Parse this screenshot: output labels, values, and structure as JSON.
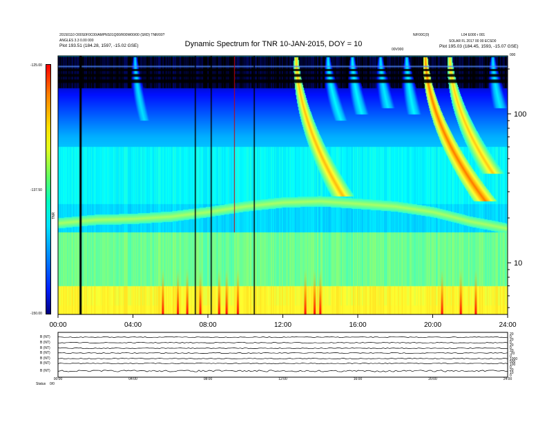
{
  "header": {
    "title": "Dynamic Spectrum for TNR 10-JAN-2015, DOY = 10",
    "left_lines": [
      "20150110 O00S0F0C00/AMPNS01Q00/R00W00/00 (SRD) TNR/00?",
      "ANGLES 3.3 0.00 000",
      "Plot    193.51 (184.28, 1597, -15.02 GSE)"
    ],
    "right_lines": [
      "N/F00C(0)",
      "L04 E000 r 001",
      "SOLAR FL 2017 00 00 ECSD0",
      "Plot    195.03 (184.45, 1593, -15.07 GSE)"
    ],
    "center_small": "00V000",
    "corner_small": "000"
  },
  "colorbar": {
    "ticks": [
      "-125.00",
      "-137.50",
      "-150.00"
    ],
    "label": "TNR"
  },
  "bottom_panel": {
    "channel_labels": [
      "B (NT)",
      "B (NT)",
      "B (NT)",
      "B (NT)",
      "B (NT)",
      "B (NT)",
      "B (NT)"
    ],
    "right_labels": [
      "20",
      "0",
      "20",
      "0",
      "20",
      "0",
      "20",
      "-20",
      "0",
      "1000",
      "500",
      "100",
      "0",
      "20",
      "10",
      "0"
    ],
    "status_label": "Status",
    "status_value": "0/0"
  },
  "chart_data": {
    "type": "heatmap",
    "title": "Dynamic Spectrum for TNR 10-JAN-2015, DOY = 10",
    "x_ticks": [
      "00:00",
      "04:00",
      "08:00",
      "12:00",
      "16:00",
      "20:00",
      "24:00"
    ],
    "x_range_hours": [
      0,
      24
    ],
    "y_scale": "log",
    "y_ticks": [
      "100",
      "10"
    ],
    "y_tick_values": [
      100,
      10
    ],
    "y_range": [
      4.5,
      245
    ],
    "color_range": [
      -150.0,
      -125.0
    ],
    "colormap": [
      "#000000",
      "#0010ff",
      "#00b0ff",
      "#00ffff",
      "#80ff80",
      "#ffff30",
      "#ffa000",
      "#ff0000"
    ],
    "background_levels": [
      {
        "y_from": 150,
        "y_to": 245,
        "level": 0.02
      },
      {
        "y_from": 60,
        "y_to": 150,
        "level": 0.22
      },
      {
        "y_from": 25,
        "y_to": 60,
        "level": 0.42
      },
      {
        "y_from": 16,
        "y_to": 25,
        "level": 0.36
      },
      {
        "y_from": 7,
        "y_to": 16,
        "level": 0.55
      },
      {
        "y_from": 4.5,
        "y_to": 7,
        "level": 0.72
      }
    ],
    "plasma_line": [
      {
        "t": 0,
        "f": 18.5
      },
      {
        "t": 2,
        "f": 19.5
      },
      {
        "t": 4,
        "f": 19.8
      },
      {
        "t": 6,
        "f": 20.5
      },
      {
        "t": 8,
        "f": 22
      },
      {
        "t": 10,
        "f": 24
      },
      {
        "t": 12,
        "f": 25.5
      },
      {
        "t": 14,
        "f": 26
      },
      {
        "t": 16,
        "f": 25
      },
      {
        "t": 18,
        "f": 24
      },
      {
        "t": 20,
        "f": 22
      },
      {
        "t": 22,
        "f": 19
      },
      {
        "t": 24,
        "f": 17
      }
    ],
    "type3_bursts": [
      {
        "t0": 12.7,
        "f0": 240,
        "t1": 15.2,
        "f1": 28,
        "level": 0.82
      },
      {
        "t0": 19.6,
        "f0": 240,
        "t1": 22.8,
        "f1": 26,
        "level": 0.9
      },
      {
        "t0": 20.9,
        "f0": 240,
        "t1": 23.2,
        "f1": 40,
        "level": 0.8
      },
      {
        "t0": 4.1,
        "f0": 240,
        "t1": 4.6,
        "f1": 90,
        "level": 0.38
      },
      {
        "t0": 14.4,
        "f0": 240,
        "t1": 15.1,
        "f1": 90,
        "level": 0.42
      },
      {
        "t0": 15.7,
        "f0": 240,
        "t1": 16.2,
        "f1": 100,
        "level": 0.42
      },
      {
        "t0": 17.2,
        "f0": 240,
        "t1": 17.6,
        "f1": 110,
        "level": 0.4
      },
      {
        "t0": 18.6,
        "f0": 240,
        "t1": 19.0,
        "f1": 100,
        "level": 0.42
      },
      {
        "t0": 23.2,
        "f0": 240,
        "t1": 23.6,
        "f1": 110,
        "level": 0.4
      }
    ],
    "data_gaps_hours": [
      1.15,
      7.3,
      8.15,
      10.45
    ],
    "noise_spikes_hours": [
      5.6,
      6.4,
      6.9,
      7.6,
      8.6,
      9.0,
      9.6,
      13.2,
      13.7,
      14.0,
      20.5,
      21.5,
      22.3
    ]
  }
}
